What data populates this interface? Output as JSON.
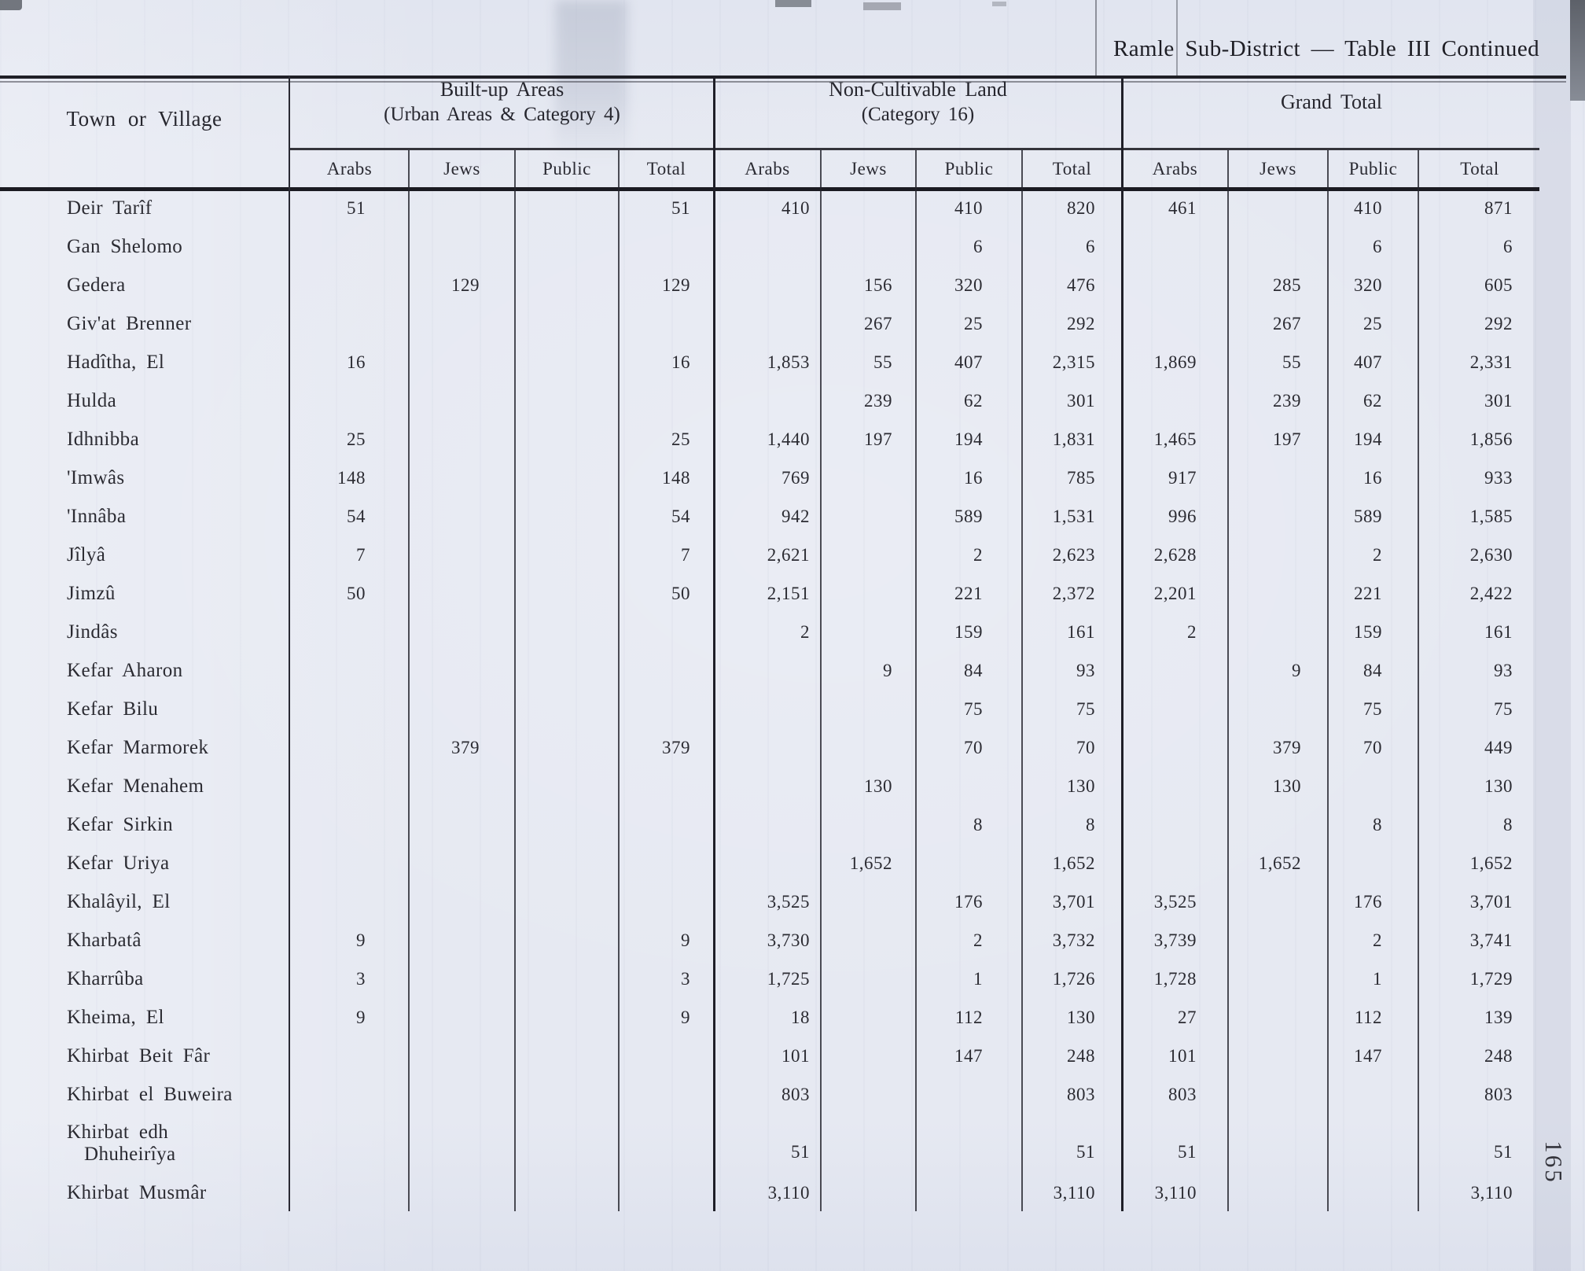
{
  "page": {
    "title": "Ramle Sub-District — Table III Continued",
    "page_number": "165"
  },
  "table": {
    "town_header": "Town or Village",
    "groups": [
      {
        "line1": "Built-up Areas",
        "line2": "(Urban Areas & Category 4)"
      },
      {
        "line1": "Non-Cultivable Land",
        "line2": "(Category 16)"
      },
      {
        "line1": "Grand Total",
        "line2": ""
      }
    ],
    "sub_headers": [
      "Arabs",
      "Jews",
      "Public",
      "Total"
    ],
    "rows": [
      {
        "name": "Deir Tarîf",
        "values": [
          "51",
          "",
          "",
          "51",
          "410",
          "",
          "410",
          "820",
          "461",
          "",
          "410",
          "871"
        ]
      },
      {
        "name": "Gan Shelomo",
        "values": [
          "",
          "",
          "",
          "",
          "",
          "",
          "6",
          "6",
          "",
          "",
          "6",
          "6"
        ]
      },
      {
        "name": "Gedera",
        "values": [
          "",
          "129",
          "",
          "129",
          "",
          "156",
          "320",
          "476",
          "",
          "285",
          "320",
          "605"
        ]
      },
      {
        "name": "Giv'at Brenner",
        "values": [
          "",
          "",
          "",
          "",
          "",
          "267",
          "25",
          "292",
          "",
          "267",
          "25",
          "292"
        ]
      },
      {
        "name": "Hadîtha, El",
        "values": [
          "16",
          "",
          "",
          "16",
          "1,853",
          "55",
          "407",
          "2,315",
          "1,869",
          "55",
          "407",
          "2,331"
        ]
      },
      {
        "name": "Hulda",
        "values": [
          "",
          "",
          "",
          "",
          "",
          "239",
          "62",
          "301",
          "",
          "239",
          "62",
          "301"
        ]
      },
      {
        "name": "Idhnibba",
        "values": [
          "25",
          "",
          "",
          "25",
          "1,440",
          "197",
          "194",
          "1,831",
          "1,465",
          "197",
          "194",
          "1,856"
        ]
      },
      {
        "name": "'Imwâs",
        "values": [
          "148",
          "",
          "",
          "148",
          "769",
          "",
          "16",
          "785",
          "917",
          "",
          "16",
          "933"
        ]
      },
      {
        "name": "'Innâba",
        "values": [
          "54",
          "",
          "",
          "54",
          "942",
          "",
          "589",
          "1,531",
          "996",
          "",
          "589",
          "1,585"
        ]
      },
      {
        "name": "Jîlyâ",
        "values": [
          "7",
          "",
          "",
          "7",
          "2,621",
          "",
          "2",
          "2,623",
          "2,628",
          "",
          "2",
          "2,630"
        ]
      },
      {
        "name": "Jimzû",
        "values": [
          "50",
          "",
          "",
          "50",
          "2,151",
          "",
          "221",
          "2,372",
          "2,201",
          "",
          "221",
          "2,422"
        ]
      },
      {
        "name": "Jindâs",
        "values": [
          "",
          "",
          "",
          "",
          "2",
          "",
          "159",
          "161",
          "2",
          "",
          "159",
          "161"
        ]
      },
      {
        "name": "Kefar Aharon",
        "values": [
          "",
          "",
          "",
          "",
          "",
          "9",
          "84",
          "93",
          "",
          "9",
          "84",
          "93"
        ]
      },
      {
        "name": "Kefar Bilu",
        "values": [
          "",
          "",
          "",
          "",
          "",
          "",
          "75",
          "75",
          "",
          "",
          "75",
          "75"
        ]
      },
      {
        "name": "Kefar Marmorek",
        "values": [
          "",
          "379",
          "",
          "379",
          "",
          "",
          "70",
          "70",
          "",
          "379",
          "70",
          "449"
        ]
      },
      {
        "name": "Kefar Menahem",
        "values": [
          "",
          "",
          "",
          "",
          "",
          "130",
          "",
          "130",
          "",
          "130",
          "",
          "130"
        ]
      },
      {
        "name": "Kefar Sirkin",
        "values": [
          "",
          "",
          "",
          "",
          "",
          "",
          "8",
          "8",
          "",
          "",
          "8",
          "8"
        ]
      },
      {
        "name": "Kefar Uriya",
        "values": [
          "",
          "",
          "",
          "",
          "",
          "1,652",
          "",
          "1,652",
          "",
          "1,652",
          "",
          "1,652"
        ]
      },
      {
        "name": "Khalâyil, El",
        "values": [
          "",
          "",
          "",
          "",
          "3,525",
          "",
          "176",
          "3,701",
          "3,525",
          "",
          "176",
          "3,701"
        ]
      },
      {
        "name": "Kharbatâ",
        "values": [
          "9",
          "",
          "",
          "9",
          "3,730",
          "",
          "2",
          "3,732",
          "3,739",
          "",
          "2",
          "3,741"
        ]
      },
      {
        "name": "Kharrûba",
        "values": [
          "3",
          "",
          "",
          "3",
          "1,725",
          "",
          "1",
          "1,726",
          "1,728",
          "",
          "1",
          "1,729"
        ]
      },
      {
        "name": "Kheima, El",
        "values": [
          "9",
          "",
          "",
          "9",
          "18",
          "",
          "112",
          "130",
          "27",
          "",
          "112",
          "139"
        ]
      },
      {
        "name": "Khirbat Beit Fâr",
        "values": [
          "",
          "",
          "",
          "",
          "101",
          "",
          "147",
          "248",
          "101",
          "",
          "147",
          "248"
        ]
      },
      {
        "name": "Khirbat el Buweira",
        "values": [
          "",
          "",
          "",
          "",
          "803",
          "",
          "",
          "803",
          "803",
          "",
          "",
          "803"
        ]
      },
      {
        "name": "Khirbat edh",
        "name2": "Dhuheirîya",
        "values": [
          "",
          "",
          "",
          "",
          "51",
          "",
          "",
          "51",
          "51",
          "",
          "",
          "51"
        ]
      },
      {
        "name": "Khirbat Musmâr",
        "values": [
          "",
          "",
          "",
          "",
          "3,110",
          "",
          "",
          "3,110",
          "3,110",
          "",
          "",
          "3,110"
        ]
      }
    ]
  }
}
